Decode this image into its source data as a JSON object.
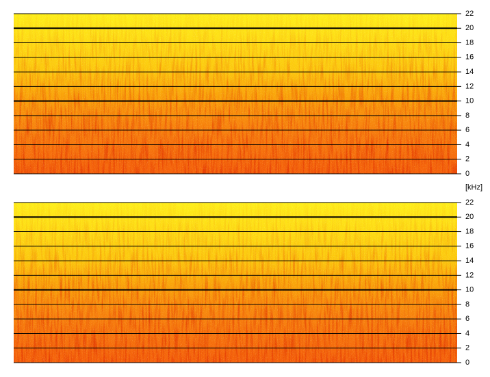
{
  "unit": "[kHz]",
  "panels": [
    {
      "ylim": [
        0,
        22
      ],
      "yticks": [
        0,
        2,
        4,
        6,
        8,
        10,
        12,
        14,
        16,
        18,
        20,
        22
      ],
      "major": [
        10,
        20
      ]
    },
    {
      "ylim": [
        0,
        22
      ],
      "yticks": [
        0,
        2,
        4,
        6,
        8,
        10,
        12,
        14,
        16,
        18,
        20,
        22
      ],
      "major": [
        10,
        20
      ]
    }
  ]
}
